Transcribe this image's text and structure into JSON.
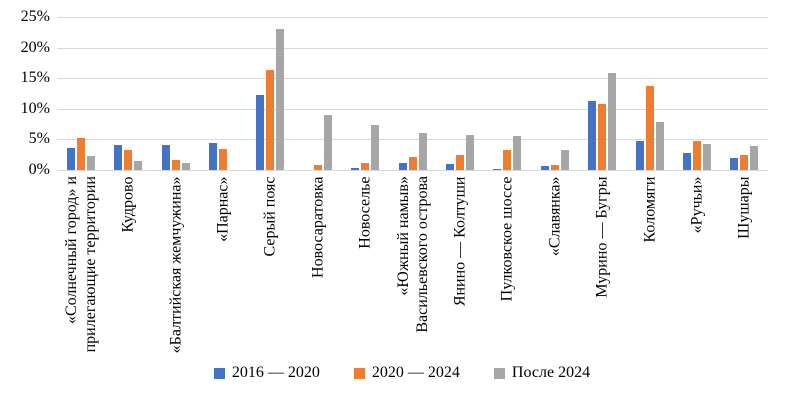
{
  "chart_data": {
    "type": "bar",
    "title": "",
    "xlabel": "",
    "ylabel": "",
    "ylim": [
      0,
      25
    ],
    "ytick_values": [
      0,
      5,
      10,
      15,
      20,
      25
    ],
    "ytick_labels": [
      "0%",
      "5%",
      "10%",
      "15%",
      "20%",
      "25%"
    ],
    "grid": true,
    "legend_position": "bottom",
    "categories": [
      "«Солнечный город» и\nприлегающие территории",
      "Кудрово",
      "«Балтийская жемчужина»",
      "«Парнас»",
      "Серый пояс",
      "Новосаратовка",
      "Новоселье",
      "«Южный намыв»\nВасильевского острова",
      "Янино — Колтуши",
      "Пулковское шоссе",
      "«Славянка»",
      "Мурино — Бугры",
      "Коломяги",
      "«Ручьи»",
      "Шушары"
    ],
    "series": [
      {
        "name": "2016 — 2020",
        "color": "#4472c4",
        "values": [
          3.6,
          4.1,
          4.1,
          4.4,
          12.2,
          0,
          0.3,
          1.2,
          1.0,
          0.2,
          0.6,
          11.2,
          4.7,
          2.8,
          2.0
        ]
      },
      {
        "name": "2020 — 2024",
        "color": "#ed7d31",
        "values": [
          5.3,
          3.2,
          1.6,
          3.5,
          16.3,
          0.9,
          1.2,
          2.2,
          2.4,
          3.3,
          0.8,
          10.8,
          13.8,
          4.7,
          2.4
        ]
      },
      {
        "name": "После 2024",
        "color": "#a6a6a6",
        "values": [
          2.3,
          1.4,
          1.2,
          0,
          23.1,
          9.0,
          7.4,
          6.1,
          5.7,
          5.5,
          3.2,
          15.8,
          7.9,
          4.2,
          4.0
        ]
      }
    ]
  },
  "colors": {
    "gridline": "#d9d9d9",
    "text": "#000000",
    "background": "#ffffff"
  }
}
